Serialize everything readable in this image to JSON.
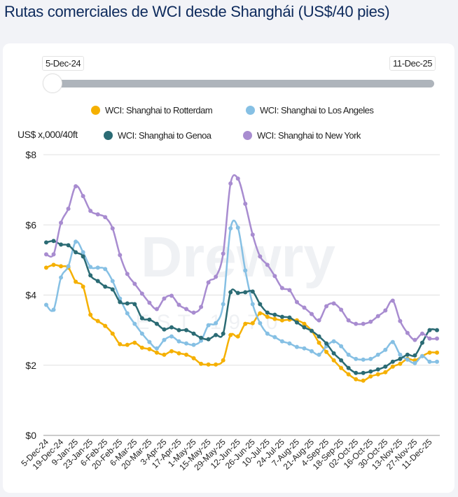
{
  "page": {
    "title": "Rutas comerciales de WCI desde Shanghái (US$/40 pies)",
    "range_slider": {
      "start_label": "5-Dec-24",
      "end_label": "11-Dec-25",
      "selected_start_fraction": 0.0
    },
    "watermark": {
      "brand": "Drewry",
      "tagline": "EST 1970"
    }
  },
  "chart_data": {
    "type": "line",
    "title": "Rutas comerciales de WCI desde Shanghái (US$/40 pies)",
    "ylabel": "US$ x,000/40ft",
    "xlabel": "",
    "ylim": [
      0,
      8
    ],
    "y_ticks": [
      0,
      2,
      4,
      6,
      8
    ],
    "y_tick_labels": [
      "$0",
      "$2",
      "$4",
      "$6",
      "$8"
    ],
    "grid": true,
    "legend_position": "top",
    "x_tick_labels": [
      "5-Dec-24",
      "19-Dec-24",
      "9-Jan-25",
      "23-Jan-25",
      "6-Feb-25",
      "20-Feb-25",
      "6-Mar-25",
      "20-Mar-25",
      "3-Apr-25",
      "17-Apr-25",
      "1-May-25",
      "15-May-25",
      "29-May-25",
      "12-Jun-25",
      "26-Jun-25",
      "10-Jul-25",
      "24-Jul-25",
      "7-Aug-25",
      "21-Aug-25",
      "4-Sep-25",
      "18-Sep-25",
      "02-Oct-25",
      "16-Oct-25",
      "30-Oct-25",
      "13-Nov-25",
      "27-Nov-25",
      "11-Dec-25"
    ],
    "x_tick_every_points": 2,
    "series": [
      {
        "name": "WCI: Shanghai to Rotterdam",
        "color": "#f5b000",
        "values": [
          4.78,
          4.86,
          4.82,
          4.78,
          4.38,
          4.24,
          3.44,
          3.26,
          3.12,
          2.9,
          2.6,
          2.58,
          2.64,
          2.5,
          2.46,
          2.36,
          2.3,
          2.4,
          2.34,
          2.3,
          2.2,
          2.04,
          2.02,
          2.02,
          2.14,
          2.86,
          2.82,
          3.18,
          3.2,
          3.48,
          3.38,
          3.32,
          3.28,
          3.3,
          3.28,
          3.18,
          2.98,
          2.64,
          2.38,
          2.14,
          1.92,
          1.74,
          1.6,
          1.56,
          1.68,
          1.74,
          1.8,
          1.96,
          2.04,
          2.18,
          2.14,
          2.26,
          2.36,
          2.36
        ]
      },
      {
        "name": "WCI: Shanghai to Los Angeles",
        "color": "#86c0e4",
        "values": [
          3.72,
          3.58,
          4.5,
          4.82,
          5.52,
          5.22,
          4.8,
          4.78,
          4.74,
          4.4,
          3.9,
          3.48,
          3.18,
          2.9,
          2.66,
          2.48,
          2.72,
          2.82,
          2.68,
          2.62,
          2.58,
          2.7,
          3.14,
          3.2,
          3.74,
          5.9,
          5.92,
          4.7,
          3.74,
          3.2,
          2.9,
          2.8,
          2.68,
          2.62,
          2.52,
          2.48,
          2.4,
          2.3,
          2.54,
          2.68,
          2.54,
          2.3,
          2.18,
          2.16,
          2.18,
          2.3,
          2.44,
          2.66,
          2.3,
          2.16,
          2.06,
          2.26,
          2.1,
          2.1
        ]
      },
      {
        "name": "WCI: Shanghai to Genoa",
        "color": "#2b6b74",
        "values": [
          5.5,
          5.54,
          5.44,
          5.42,
          5.22,
          5.1,
          4.56,
          4.4,
          4.24,
          4.16,
          3.8,
          3.76,
          3.74,
          3.34,
          3.3,
          3.18,
          3.02,
          3.08,
          3.0,
          3.0,
          2.9,
          2.78,
          2.74,
          2.86,
          2.9,
          4.08,
          4.06,
          4.08,
          4.1,
          3.74,
          3.5,
          3.44,
          3.38,
          3.36,
          3.22,
          3.08,
          2.98,
          2.82,
          2.62,
          2.34,
          2.14,
          1.92,
          1.78,
          1.78,
          1.82,
          1.88,
          1.96,
          2.1,
          2.18,
          2.3,
          2.28,
          2.64,
          3.0,
          3.0
        ]
      },
      {
        "name": "WCI: Shanghai to New York",
        "color": "#a88cd0",
        "values": [
          5.16,
          5.16,
          6.06,
          6.46,
          7.1,
          6.82,
          6.4,
          6.3,
          6.22,
          5.9,
          5.14,
          4.6,
          4.32,
          4.04,
          3.78,
          3.6,
          3.9,
          3.98,
          3.72,
          3.6,
          3.5,
          3.66,
          4.36,
          4.52,
          5.18,
          7.18,
          7.32,
          6.6,
          5.72,
          5.1,
          4.86,
          4.54,
          4.2,
          4.14,
          3.8,
          3.64,
          3.46,
          3.28,
          3.68,
          3.76,
          3.58,
          3.28,
          3.18,
          3.18,
          3.24,
          3.4,
          3.56,
          3.84,
          3.26,
          2.92,
          2.72,
          2.9,
          2.76,
          2.76
        ]
      }
    ]
  }
}
